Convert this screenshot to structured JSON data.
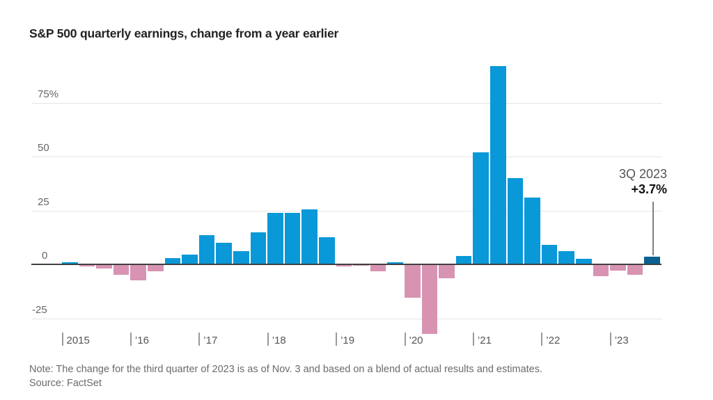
{
  "page": {
    "title": "S&P 500 quarterly earnings, change from a year earlier",
    "note": "Note: The change for the third quarter of 2023 is as of Nov. 3 and based on a blend of actual results and estimates.",
    "source": "Source: FactSet",
    "annotation": {
      "quarter": "3Q 2023",
      "value": "+3.7%"
    }
  },
  "chart_data": {
    "type": "bar",
    "title": "S&P 500 quarterly earnings, change from a year earlier",
    "ylabel": "Change from a year earlier (%)",
    "categories": [
      "1Q 2015",
      "2Q 2015",
      "3Q 2015",
      "4Q 2015",
      "1Q 2016",
      "2Q 2016",
      "3Q 2016",
      "4Q 2016",
      "1Q 2017",
      "2Q 2017",
      "3Q 2017",
      "4Q 2017",
      "1Q 2018",
      "2Q 2018",
      "3Q 2018",
      "4Q 2018",
      "1Q 2019",
      "2Q 2019",
      "3Q 2019",
      "4Q 2019",
      "1Q 2020",
      "2Q 2020",
      "3Q 2020",
      "4Q 2020",
      "1Q 2021",
      "2Q 2021",
      "3Q 2021",
      "4Q 2021",
      "1Q 2022",
      "2Q 2022",
      "3Q 2022",
      "4Q 2022",
      "1Q 2023",
      "2Q 2023",
      "3Q 2023"
    ],
    "values": [
      1,
      -0.7,
      -1.5,
      -4.5,
      -7,
      -3,
      3,
      4.5,
      13.5,
      10,
      6,
      15,
      24,
      24,
      25.5,
      12.5,
      -0.7,
      -0.4,
      -3,
      1,
      -15,
      -32,
      -6,
      4,
      52,
      92,
      40,
      31,
      9,
      6,
      2.5,
      -5,
      -2.5,
      -4.5,
      3.7
    ],
    "highlight_index": 34,
    "y_ticks": [
      {
        "label": "75%",
        "value": 75
      },
      {
        "label": "50",
        "value": 50
      },
      {
        "label": "25",
        "value": 25
      },
      {
        "label": "0",
        "value": 0
      },
      {
        "label": "-25",
        "value": -25
      }
    ],
    "x_ticks": [
      {
        "label": "2015"
      },
      {
        "label": "’16"
      },
      {
        "label": "’17"
      },
      {
        "label": "’18"
      },
      {
        "label": "’19"
      },
      {
        "label": "’20"
      },
      {
        "label": "’21"
      },
      {
        "label": "’22"
      },
      {
        "label": "’23"
      }
    ],
    "ylim": [
      -35,
      95
    ],
    "grid": true,
    "legend": false,
    "colors": {
      "positive": "#0998d8",
      "negative": "#d893b3",
      "highlight": "#0d6092"
    },
    "annotation": {
      "quarter": "3Q 2023",
      "value": "+3.7%"
    }
  }
}
